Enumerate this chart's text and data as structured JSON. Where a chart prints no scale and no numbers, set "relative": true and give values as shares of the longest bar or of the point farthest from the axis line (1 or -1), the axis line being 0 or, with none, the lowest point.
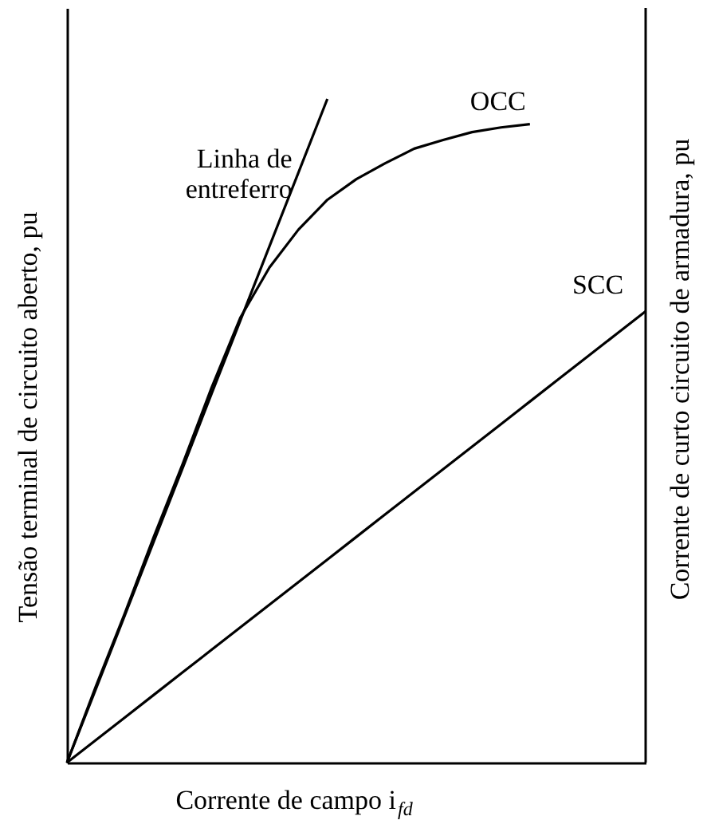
{
  "chart_data": {
    "type": "line",
    "relative": true,
    "xlabel": "Corrente de campo i$_{fd}$",
    "ylabel": "Tensão terminal de circuito aberto, pu",
    "y2label": "Corrente de curto circuito de armadura, pu",
    "marker": "none",
    "line_style": "solid",
    "categories": [
      null,
      null,
      null,
      null,
      null,
      null,
      null,
      null,
      null,
      null,
      null,
      null,
      null,
      null,
      null,
      null,
      null,
      null,
      null,
      null,
      null
    ],
    "series": [
      {
        "name": "Linha de\nentreferro",
        "color": "#000000",
        "values": [
          0,
          0.111,
          0.222,
          0.333,
          0.444,
          0.556,
          0.667,
          0.778,
          0.889,
          1.0,
          null,
          null,
          null,
          null,
          null,
          null,
          null,
          null,
          null,
          null,
          null
        ]
      },
      {
        "name": "OCC",
        "color": "#000000",
        "values": [
          0,
          0.115,
          0.225,
          0.34,
          0.45,
          0.565,
          0.671,
          0.746,
          0.803,
          0.848,
          0.879,
          0.903,
          0.925,
          0.938,
          0.95,
          0.957,
          0.962,
          null,
          null,
          null,
          null
        ]
      },
      {
        "name": "SCC",
        "color": "#000000",
        "values": [
          0,
          0.034,
          0.068,
          0.102,
          0.136,
          0.17,
          0.204,
          0.238,
          0.272,
          0.306,
          0.34,
          0.374,
          0.408,
          0.442,
          0.476,
          0.51,
          0.544,
          0.578,
          0.612,
          0.646,
          0.68
        ]
      }
    ]
  }
}
